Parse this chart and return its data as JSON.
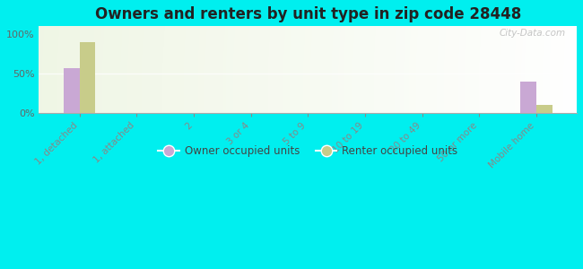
{
  "title": "Owners and renters by unit type in zip code 28448",
  "categories": [
    "1, detached",
    "1, attached",
    "2",
    "3 or 4",
    "5 to 9",
    "10 to 19",
    "20 to 49",
    "50 or more",
    "Mobile home"
  ],
  "owner_values": [
    57,
    0,
    0,
    0,
    0,
    0,
    0,
    0,
    40
  ],
  "renter_values": [
    90,
    0,
    0,
    0,
    0,
    0,
    0,
    0,
    10
  ],
  "owner_color": "#c9a8d4",
  "renter_color": "#c8cc8a",
  "background_color": "#00efef",
  "plot_bg_color": "#dde8c0",
  "yticks": [
    0,
    50,
    100
  ],
  "ylim": [
    0,
    110
  ],
  "bar_width": 0.28,
  "title_fontsize": 12,
  "watermark": "City-Data.com",
  "legend_labels": [
    "Owner occupied units",
    "Renter occupied units"
  ]
}
